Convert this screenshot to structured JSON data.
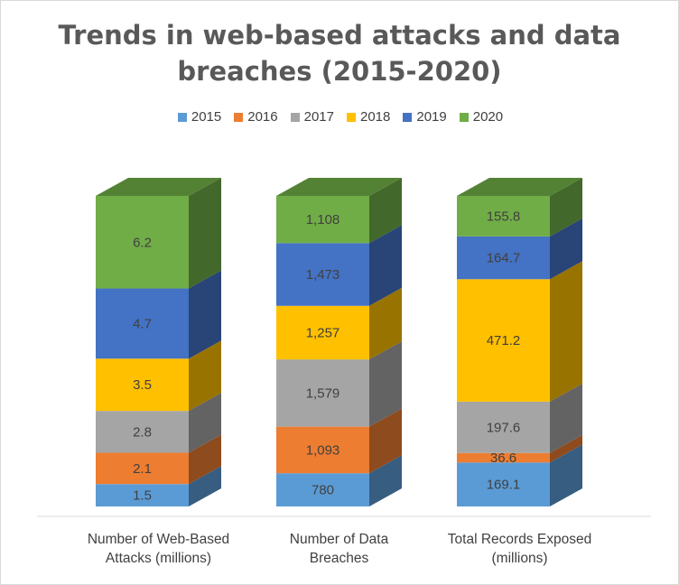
{
  "chart_data": {
    "type": "bar",
    "stacked": true,
    "title": "Trends in web-based attacks and data breaches (2015-2020)",
    "legend_position": "top",
    "categories": [
      "Number of Web-Based Attacks (millions)",
      "Number of Data Breaches",
      "Total Records Exposed (millions)"
    ],
    "series": [
      {
        "name": "2015",
        "color": "#5b9bd5",
        "values": [
          1.5,
          780,
          169.1
        ],
        "labels": [
          "1.5",
          "780",
          "169.1"
        ]
      },
      {
        "name": "2016",
        "color": "#ed7d31",
        "values": [
          2.1,
          1093,
          36.6
        ],
        "labels": [
          "2.1",
          "1,093",
          "36.6"
        ]
      },
      {
        "name": "2017",
        "color": "#a5a5a5",
        "values": [
          2.8,
          1579,
          197.6
        ],
        "labels": [
          "2.8",
          "1,579",
          "197.6"
        ]
      },
      {
        "name": "2018",
        "color": "#ffc000",
        "values": [
          3.5,
          1257,
          471.2
        ],
        "labels": [
          "3.5",
          "1,257",
          "471.2"
        ]
      },
      {
        "name": "2019",
        "color": "#4472c4",
        "values": [
          4.7,
          1473,
          164.7
        ],
        "labels": [
          "4.7",
          "1,473",
          "164.7"
        ]
      },
      {
        "name": "2020",
        "color": "#70ad47",
        "values": [
          6.2,
          1108,
          155.8
        ],
        "labels": [
          "6.2",
          "1,108",
          "155.8"
        ]
      }
    ]
  }
}
